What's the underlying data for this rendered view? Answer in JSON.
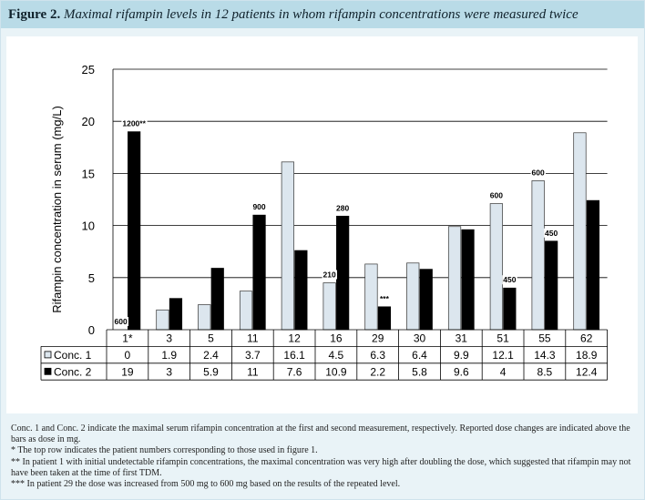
{
  "figure": {
    "label": "Figure 2.",
    "title": "Maximal rifampin levels in 12 patients in whom rifampin concentrations were measured twice"
  },
  "chart_data": {
    "type": "bar",
    "ylabel": "Rifampin concentration in serum (mg/L)",
    "xlabel": "",
    "ylim": [
      0,
      25
    ],
    "yticks": [
      "0",
      "5",
      "10",
      "15",
      "20",
      "25"
    ],
    "grid": true,
    "categories": [
      "1*",
      "3",
      "5",
      "11",
      "12",
      "16",
      "29",
      "30",
      "31",
      "51",
      "55",
      "62"
    ],
    "series": [
      {
        "name": "Conc. 1",
        "color": "#dce6ee",
        "values": [
          0,
          1.9,
          2.4,
          3.7,
          16.1,
          4.5,
          6.3,
          6.4,
          9.9,
          12.1,
          14.3,
          18.9
        ],
        "cells": [
          "0",
          "1.9",
          "2.4",
          "3.7",
          "16.1",
          "4.5",
          "6.3",
          "6.4",
          "9.9",
          "12.1",
          "14.3",
          "18.9"
        ]
      },
      {
        "name": "Conc. 2",
        "color": "#000000",
        "values": [
          19,
          3,
          5.9,
          11,
          7.6,
          10.9,
          2.2,
          5.8,
          9.6,
          4,
          8.5,
          12.4
        ],
        "cells": [
          "19",
          "3",
          "5.9",
          "11",
          "7.6",
          "10.9",
          "2.2",
          "5.8",
          "9.6",
          "4",
          "8.5",
          "12.4"
        ]
      }
    ],
    "annotations": [
      {
        "text": "600",
        "category": 0,
        "series": 0
      },
      {
        "text": "1200**",
        "category": 0,
        "series": 1
      },
      {
        "text": "900",
        "category": 3,
        "series": 1
      },
      {
        "text": "210",
        "category": 5,
        "series": 0
      },
      {
        "text": "280",
        "category": 5,
        "series": 1
      },
      {
        "text": "***",
        "category": 6,
        "series": 1
      },
      {
        "text": "600",
        "category": 9,
        "series": 0
      },
      {
        "text": "450",
        "category": 9,
        "series": 1
      },
      {
        "text": "600",
        "category": 10,
        "series": 0
      },
      {
        "text": "450",
        "category": 10,
        "series": 1
      }
    ]
  },
  "notes": [
    "Conc. 1 and Conc. 2 indicate the maximal serum rifampin concentration at the first and second measurement, respectively. Reported dose changes are indicated above the bars as dose in mg.",
    "* The top row indicates the patient numbers corresponding to those used in figure 1.",
    "** In patient 1 with initial undetectable rifampin concentrations, the maximal concentration was very high after doubling the dose, which suggested that rifampin may not have been taken at the time of first TDM.",
    "*** In patient 29 the dose was increased from 500 mg to 600 mg based on the results of the repeated level."
  ],
  "colors": {
    "header": "#b9dbe7",
    "panel": "#e9f3f7",
    "grid": "#000000"
  }
}
